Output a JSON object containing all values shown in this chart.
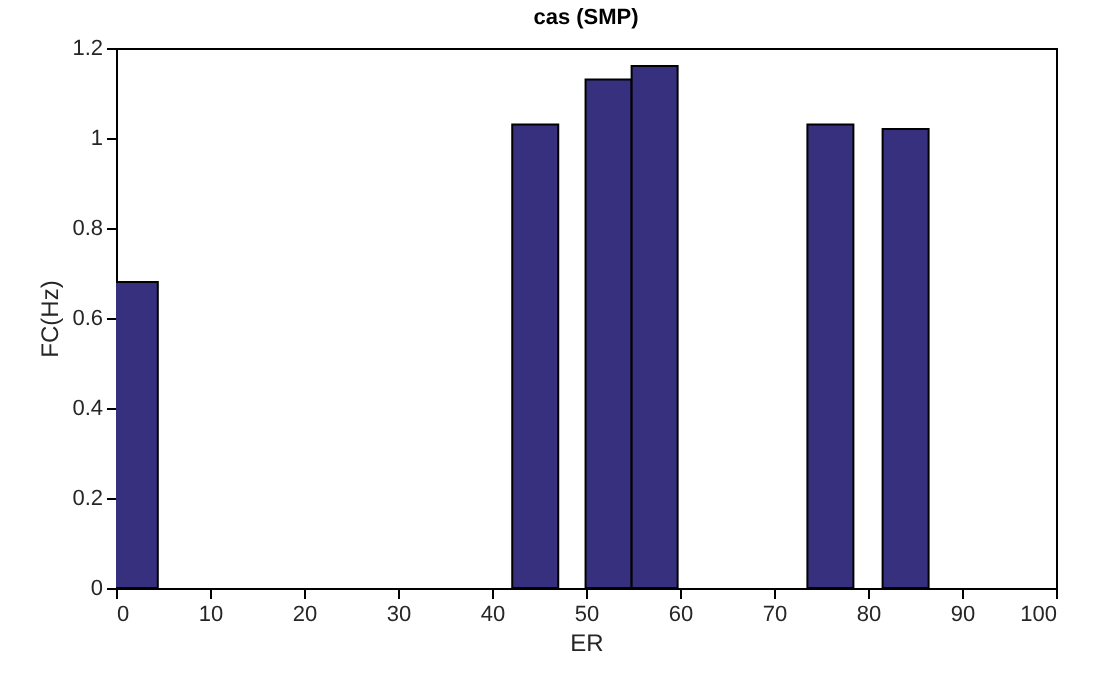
{
  "chart_data": {
    "type": "bar",
    "title": "cas (SMP)",
    "xlabel": "ER",
    "ylabel": "FC(Hz)",
    "x": [
      2,
      44.6,
      52.4,
      57.3,
      76,
      84
    ],
    "values": [
      0.68,
      1.03,
      1.13,
      1.16,
      1.03,
      1.02
    ],
    "color": "#36307f",
    "xlim": [
      0,
      100
    ],
    "xticks": [
      0,
      10,
      20,
      30,
      40,
      50,
      60,
      70,
      80,
      90,
      100
    ],
    "ylim": [
      0,
      1.2
    ],
    "yticks": [
      0,
      0.2,
      0.4,
      0.6,
      0.8,
      1,
      1.2
    ],
    "grid": false
  }
}
